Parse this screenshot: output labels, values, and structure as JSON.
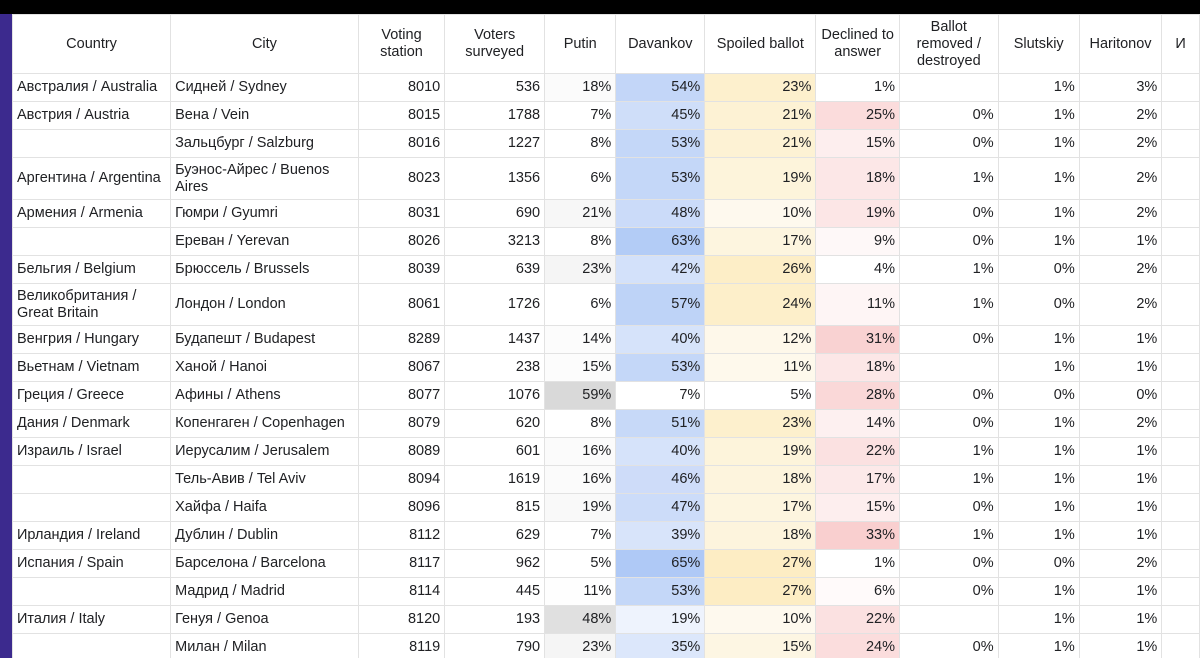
{
  "columns": [
    "Country",
    "City",
    "Voting station",
    "Voters surveyed",
    "Putin",
    "Davankov",
    "Spoiled ballot",
    "Declined to answer",
    "Ballot removed / destroyed",
    "Slutskiy",
    "Haritonov",
    "И"
  ],
  "rows": [
    {
      "country": "Австралия / Australia",
      "city": "Сидней / Sydney",
      "station": "8010",
      "surveyed": "536",
      "putin": "18%",
      "davankov": "54%",
      "spoiled": "23%",
      "declined": "1%",
      "removed": "",
      "slutskiy": "1%",
      "haritonov": "3%",
      "putin_bg": "#fbfbfb",
      "davankov_bg": "#c3d6f8",
      "spoiled_bg": "#fdf0cd",
      "declined_bg": "#ffffff"
    },
    {
      "country": "Австрия / Austria",
      "city": "Вена / Vein",
      "station": "8015",
      "surveyed": "1788",
      "putin": "7%",
      "davankov": "45%",
      "spoiled": "21%",
      "declined": "25%",
      "removed": "0%",
      "slutskiy": "1%",
      "haritonov": "2%",
      "putin_bg": "#ffffff",
      "davankov_bg": "#cfdef9",
      "spoiled_bg": "#fdf2d4",
      "declined_bg": "#fbdcdc"
    },
    {
      "country": "",
      "city": "Зальцбург / Salzburg",
      "station": "8016",
      "surveyed": "1227",
      "putin": "8%",
      "davankov": "53%",
      "spoiled": "21%",
      "declined": "15%",
      "removed": "0%",
      "slutskiy": "1%",
      "haritonov": "2%",
      "putin_bg": "#ffffff",
      "davankov_bg": "#c4d7f8",
      "spoiled_bg": "#fdf2d4",
      "declined_bg": "#fdeeee"
    },
    {
      "country": "Аргентина / Argentina",
      "city": "Буэнос-Айрес / Buenos Aires",
      "station": "8023",
      "surveyed": "1356",
      "putin": "6%",
      "davankov": "53%",
      "spoiled": "19%",
      "declined": "18%",
      "removed": "1%",
      "slutskiy": "1%",
      "haritonov": "2%",
      "putin_bg": "#ffffff",
      "davankov_bg": "#c4d7f8",
      "spoiled_bg": "#fdf4db",
      "declined_bg": "#fce7e7",
      "tall": true
    },
    {
      "country": "Армения / Armenia",
      "city": "Гюмри / Gyumri",
      "station": "8031",
      "surveyed": "690",
      "putin": "21%",
      "davankov": "48%",
      "spoiled": "10%",
      "declined": "19%",
      "removed": "0%",
      "slutskiy": "1%",
      "haritonov": "2%",
      "putin_bg": "#f7f7f7",
      "davankov_bg": "#cbdbf9",
      "spoiled_bg": "#fef9ee",
      "declined_bg": "#fce6e6"
    },
    {
      "country": "",
      "city": "Ереван / Yerevan",
      "station": "8026",
      "surveyed": "3213",
      "putin": "8%",
      "davankov": "63%",
      "spoiled": "17%",
      "declined": "9%",
      "removed": "0%",
      "slutskiy": "1%",
      "haritonov": "1%",
      "putin_bg": "#ffffff",
      "davankov_bg": "#b3ccf6",
      "spoiled_bg": "#fdf5df",
      "declined_bg": "#fef8f8"
    },
    {
      "country": "Бельгия / Belgium",
      "city": "Брюссель / Brussels",
      "station": "8039",
      "surveyed": "639",
      "putin": "23%",
      "davankov": "42%",
      "spoiled": "26%",
      "declined": "4%",
      "removed": "1%",
      "slutskiy": "0%",
      "haritonov": "2%",
      "putin_bg": "#f5f5f5",
      "davankov_bg": "#d3e1fa",
      "spoiled_bg": "#fdeec7",
      "declined_bg": "#ffffff"
    },
    {
      "country": "Великобритания / Great Britain",
      "city": "Лондон / London",
      "station": "8061",
      "surveyed": "1726",
      "putin": "6%",
      "davankov": "57%",
      "spoiled": "24%",
      "declined": "11%",
      "removed": "1%",
      "slutskiy": "0%",
      "haritonov": "2%",
      "putin_bg": "#ffffff",
      "davankov_bg": "#bed3f7",
      "spoiled_bg": "#fdefca",
      "declined_bg": "#fef5f5",
      "tall": true
    },
    {
      "country": "Венгрия / Hungary",
      "city": "Будапешт / Budapest",
      "station": "8289",
      "surveyed": "1437",
      "putin": "14%",
      "davankov": "40%",
      "spoiled": "12%",
      "declined": "31%",
      "removed": "0%",
      "slutskiy": "1%",
      "haritonov": "1%",
      "putin_bg": "#fcfcfc",
      "davankov_bg": "#d6e3fa",
      "spoiled_bg": "#fef8ea",
      "declined_bg": "#f9d2d2"
    },
    {
      "country": "Вьетнам / Vietnam",
      "city": "Ханой / Hanoi",
      "station": "8067",
      "surveyed": "238",
      "putin": "15%",
      "davankov": "53%",
      "spoiled": "11%",
      "declined": "18%",
      "removed": "",
      "slutskiy": "1%",
      "haritonov": "1%",
      "putin_bg": "#fcfcfc",
      "davankov_bg": "#c4d7f8",
      "spoiled_bg": "#fef9ec",
      "declined_bg": "#fce7e7"
    },
    {
      "country": "Греция / Greece",
      "city": "Афины / Athens",
      "station": "8077",
      "surveyed": "1076",
      "putin": "59%",
      "davankov": "7%",
      "spoiled": "5%",
      "declined": "28%",
      "removed": "0%",
      "slutskiy": "0%",
      "haritonov": "0%",
      "putin_bg": "#d9d9d9",
      "davankov_bg": "#ffffff",
      "spoiled_bg": "#ffffff",
      "declined_bg": "#fad8d8"
    },
    {
      "country": "Дания / Denmark",
      "city": "Копенгаген / Copenhagen",
      "station": "8079",
      "surveyed": "620",
      "putin": "8%",
      "davankov": "51%",
      "spoiled": "23%",
      "declined": "14%",
      "removed": "0%",
      "slutskiy": "1%",
      "haritonov": "2%",
      "putin_bg": "#ffffff",
      "davankov_bg": "#c7d9f8",
      "spoiled_bg": "#fdf0cd",
      "declined_bg": "#fdf0f0"
    },
    {
      "country": "Израиль / Israel",
      "city": "Иерусалим / Jerusalem",
      "station": "8089",
      "surveyed": "601",
      "putin": "16%",
      "davankov": "40%",
      "spoiled": "19%",
      "declined": "22%",
      "removed": "1%",
      "slutskiy": "1%",
      "haritonov": "1%",
      "putin_bg": "#fbfbfb",
      "davankov_bg": "#d6e3fa",
      "spoiled_bg": "#fdf4db",
      "declined_bg": "#fbe1e1"
    },
    {
      "country": "",
      "city": "Тель-Авив / Tel Aviv",
      "station": "8094",
      "surveyed": "1619",
      "putin": "16%",
      "davankov": "46%",
      "spoiled": "18%",
      "declined": "17%",
      "removed": "1%",
      "slutskiy": "1%",
      "haritonov": "1%",
      "putin_bg": "#fbfbfb",
      "davankov_bg": "#cedcf9",
      "spoiled_bg": "#fdf4dd",
      "declined_bg": "#fce9e9"
    },
    {
      "country": "",
      "city": "Хайфа / Haifa",
      "station": "8096",
      "surveyed": "815",
      "putin": "19%",
      "davankov": "47%",
      "spoiled": "17%",
      "declined": "15%",
      "removed": "0%",
      "slutskiy": "1%",
      "haritonov": "1%",
      "putin_bg": "#f9f9f9",
      "davankov_bg": "#ccdcf9",
      "spoiled_bg": "#fdf5df",
      "declined_bg": "#fdeeee"
    },
    {
      "country": "Ирландия / Ireland",
      "city": "Дублин / Dublin",
      "station": "8112",
      "surveyed": "629",
      "putin": "7%",
      "davankov": "39%",
      "spoiled": "18%",
      "declined": "33%",
      "removed": "1%",
      "slutskiy": "1%",
      "haritonov": "1%",
      "putin_bg": "#ffffff",
      "davankov_bg": "#d8e4fa",
      "spoiled_bg": "#fdf4dd",
      "declined_bg": "#f9cfcf"
    },
    {
      "country": "Испания / Spain",
      "city": "Барселона / Barcelona",
      "station": "8117",
      "surveyed": "962",
      "putin": "5%",
      "davankov": "65%",
      "spoiled": "27%",
      "declined": "1%",
      "removed": "0%",
      "slutskiy": "0%",
      "haritonov": "2%",
      "putin_bg": "#ffffff",
      "davankov_bg": "#afc9f6",
      "spoiled_bg": "#fdedc4",
      "declined_bg": "#ffffff"
    },
    {
      "country": "",
      "city": "Мадрид / Madrid",
      "station": "8114",
      "surveyed": "445",
      "putin": "11%",
      "davankov": "53%",
      "spoiled": "27%",
      "declined": "6%",
      "removed": "0%",
      "slutskiy": "1%",
      "haritonov": "1%",
      "putin_bg": "#fefefe",
      "davankov_bg": "#c4d7f8",
      "spoiled_bg": "#fdedc4",
      "declined_bg": "#fffafa"
    },
    {
      "country": "Италия / Italy",
      "city": "Генуя / Genoa",
      "station": "8120",
      "surveyed": "193",
      "putin": "48%",
      "davankov": "19%",
      "spoiled": "10%",
      "declined": "22%",
      "removed": "",
      "slutskiy": "1%",
      "haritonov": "1%",
      "putin_bg": "#e0e0e0",
      "davankov_bg": "#eef3fd",
      "spoiled_bg": "#fef9ee",
      "declined_bg": "#fbe1e1"
    },
    {
      "country": "",
      "city": "Милан / Milan",
      "station": "8119",
      "surveyed": "790",
      "putin": "23%",
      "davankov": "35%",
      "spoiled": "15%",
      "declined": "24%",
      "removed": "0%",
      "slutskiy": "1%",
      "haritonov": "1%",
      "putin_bg": "#f5f5f5",
      "davankov_bg": "#dce7fb",
      "spoiled_bg": "#fdf6e3",
      "declined_bg": "#fbdddd"
    }
  ]
}
